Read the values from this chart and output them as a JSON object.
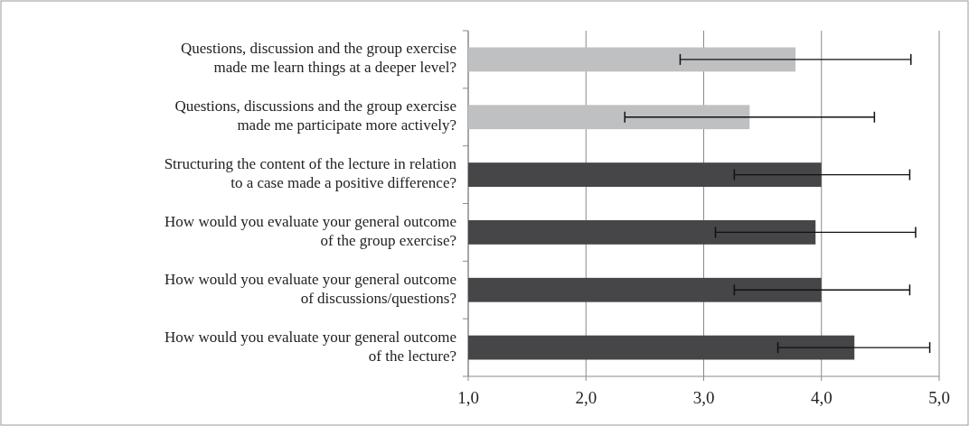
{
  "chart_data": {
    "type": "bar",
    "orientation": "horizontal",
    "grid": "x",
    "categories": [
      "Questions, discussion and the group exercise\nmade me learn things at a deeper level?",
      "Questions, discussions and the group exercise\nmade me participate more actively?",
      "Structuring the content of the lecture in relation\nto a case made a positive difference?",
      "How would you evaluate your general outcome\nof the group exercise?",
      "How would you evaluate your general outcome\nof discussions/questions?",
      "How would you evaluate your general outcome\nof the lecture?"
    ],
    "values": [
      3.78,
      3.39,
      4.0,
      3.95,
      4.0,
      4.28
    ],
    "colors": [
      "#bfc0c2",
      "#bfc0c2",
      "#464547",
      "#464547",
      "#464547",
      "#464547"
    ],
    "errors": [
      [
        2.8,
        4.76
      ],
      [
        2.33,
        4.45
      ],
      [
        3.26,
        4.75
      ],
      [
        3.1,
        4.8
      ],
      [
        3.26,
        4.75
      ],
      [
        3.63,
        4.92
      ]
    ],
    "xlim": [
      1,
      5
    ],
    "xticks": [
      {
        "value": 1,
        "label": "1,0"
      },
      {
        "value": 2,
        "label": "2,0"
      },
      {
        "value": 3,
        "label": "3,0"
      },
      {
        "value": 4,
        "label": "4,0"
      },
      {
        "value": 5,
        "label": "5,0"
      }
    ]
  }
}
